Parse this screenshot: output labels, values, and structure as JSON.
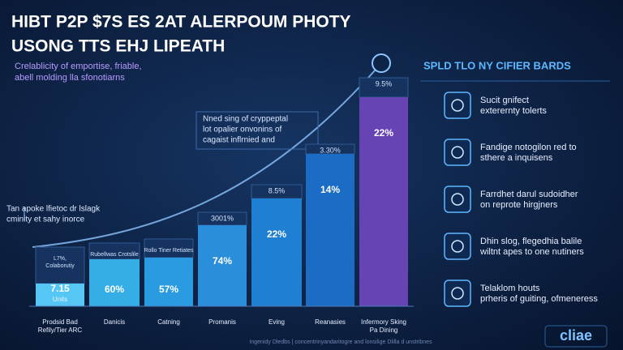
{
  "header": {
    "title_lines": [
      "HIBT P2P $7S ES 2AT ALERPOUM PHOTY",
      "USONG TTS EHJ LIPEATH"
    ],
    "subtitle_lines": [
      "Crelablicity of emportise, friable,",
      "abell molding lla sfonotiarns"
    ]
  },
  "annotations": [
    {
      "lines": [
        "Nned sing of cryppeptal",
        "lot opalier onvonins of",
        "cagaist inflrnied and"
      ]
    },
    {
      "lines": [
        "Tan apoke lfietoc dr lslagk",
        "cminity et sahy inorce"
      ]
    }
  ],
  "bars": [
    {
      "category": [
        "Prodsid Bad",
        "Refily/Tier ARC"
      ],
      "cap": [
        "L7%,",
        "Colaborutiy"
      ],
      "label": "7.15",
      "sublabel": "Units"
    },
    {
      "category": [
        "Danicis"
      ],
      "cap": [
        "Rubellwas Crotslile"
      ],
      "label": "60%"
    },
    {
      "category": [
        "Catning"
      ],
      "cap": [
        "Rollo Tiner Retiates"
      ],
      "label": "57%"
    },
    {
      "category": [
        "Promanis"
      ],
      "cap": [
        "3001%"
      ],
      "label": "74%"
    },
    {
      "category": [
        "Eving"
      ],
      "cap": [
        "8.5%"
      ],
      "label": "22%"
    },
    {
      "category": [
        "Reanasies"
      ],
      "cap": [
        "3.30%"
      ],
      "label": "14%"
    },
    {
      "category": [
        "Infermory Sking",
        "Pa Dining"
      ],
      "cap": [
        "9.5%"
      ],
      "label": "22%"
    }
  ],
  "panel": {
    "heading": "SPLD TLO NY CIFIER BARDS",
    "items": [
      {
        "lines": [
          "Sucit gnifect",
          "exterernty tolerts"
        ]
      },
      {
        "lines": [
          "Fandige notogilon red to",
          "sthere a inquisens"
        ]
      },
      {
        "lines": [
          "Farrdhet darul sudoidher",
          "on reprote hirgjners"
        ]
      },
      {
        "lines": [
          "Dhin slog, flegedhia balile",
          "wiltnt apes to one nutiners"
        ]
      },
      {
        "lines": [
          "Telaklom houts",
          "prheris of guiting, ofmeneress"
        ]
      }
    ]
  },
  "footer": {
    "note": "Ingenidy Dledbs | concentrinyandaritogre and lonsilige Dlilla d unstribnes",
    "logo": "cliae"
  }
}
